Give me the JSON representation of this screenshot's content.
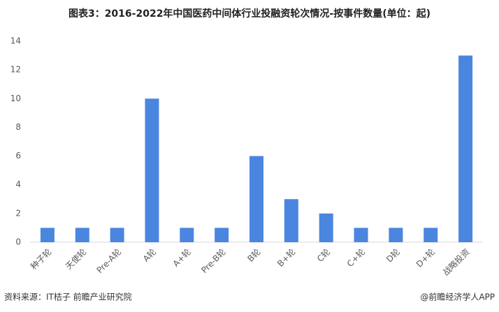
{
  "chart_data": {
    "type": "bar",
    "title": "图表3：2016-2022年中国医药中间体行业投融资轮次情况-按事件数量(单位：起)",
    "categories": [
      "种子轮",
      "天使轮",
      "Pre-A轮",
      "A轮",
      "A+轮",
      "Pre-B轮",
      "B轮",
      "B+轮",
      "C轮",
      "C+轮",
      "D轮",
      "D+轮",
      "战略投资"
    ],
    "values": [
      1,
      1,
      1,
      10,
      1,
      1,
      6,
      3,
      2,
      1,
      1,
      1,
      13
    ],
    "color": "#4a86e0",
    "ylim": [
      0,
      14
    ],
    "yticks": [
      0,
      2,
      4,
      6,
      8,
      10,
      12,
      14
    ],
    "grid": false,
    "source": "资料来源：IT桔子 前瞻产业研究院",
    "credit": "@前瞻经济学人APP"
  }
}
